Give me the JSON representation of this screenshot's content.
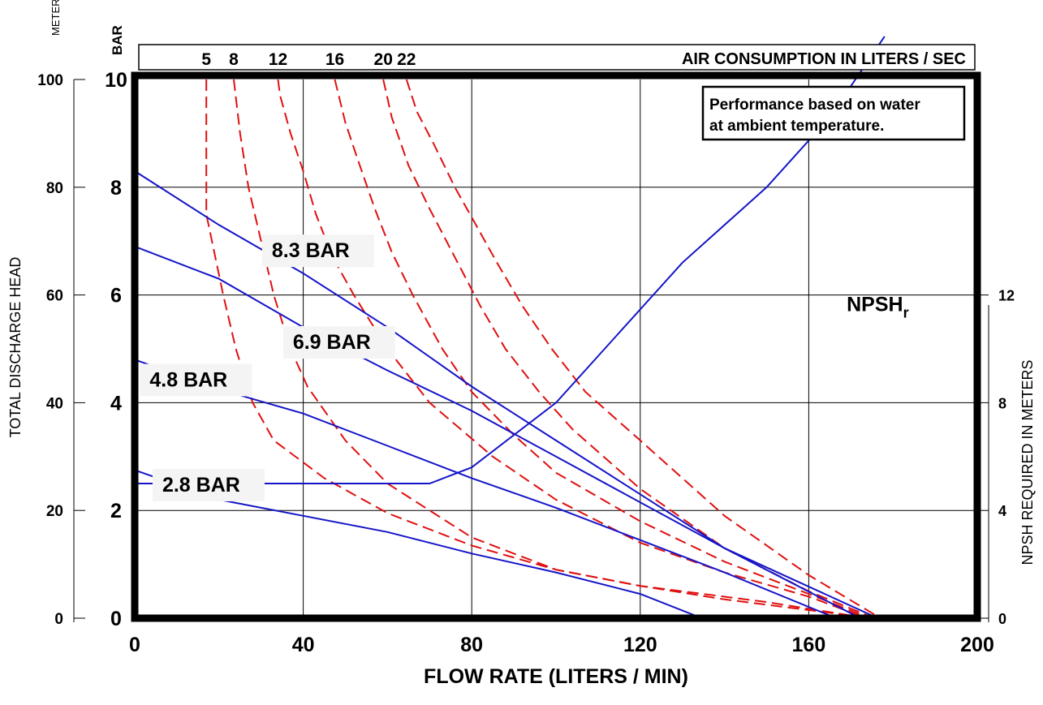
{
  "chart_data": {
    "type": "line",
    "title": "",
    "note": [
      "Performance based on water",
      "at ambient temperature."
    ],
    "xlabel": "FLOW RATE (LITERS / MIN)",
    "x_ticks": [
      "0",
      "40",
      "80",
      "120",
      "160",
      "200"
    ],
    "xlim": [
      0,
      200
    ],
    "y_left_meters": {
      "label": "TOTAL DISCHARGE HEAD",
      "unit": "METERS",
      "ticks": [
        "0",
        "20",
        "40",
        "60",
        "80",
        "100"
      ],
      "ylim": [
        0,
        100
      ]
    },
    "y_left_bar": {
      "unit": "BAR",
      "ticks": [
        "0",
        "2",
        "4",
        "6",
        "8",
        "10"
      ],
      "ylim": [
        0,
        10
      ]
    },
    "y_right": {
      "label": "NPSH REQUIRED IN METERS",
      "ticks": [
        "0",
        "4",
        "8",
        "12"
      ],
      "ylim": [
        0,
        20
      ]
    },
    "air_axis": {
      "label": "AIR CONSUMPTION IN LITERS / SEC",
      "values": [
        "5",
        "8",
        "12",
        "16",
        "20",
        "22"
      ]
    },
    "grid": true,
    "colors": {
      "pressure": "#1515c8",
      "air": "#e01010",
      "frame": "#000000"
    },
    "pressure_series": [
      {
        "name": "8.3 BAR",
        "label_at": [
          31,
          6.7
        ],
        "points": [
          [
            0,
            8.3
          ],
          [
            20,
            7.3
          ],
          [
            40,
            6.4
          ],
          [
            60,
            5.4
          ],
          [
            80,
            4.3
          ],
          [
            100,
            3.3
          ],
          [
            120,
            2.3
          ],
          [
            140,
            1.3
          ],
          [
            175,
            0.05
          ]
        ]
      },
      {
        "name": "6.9 BAR",
        "label_at": [
          36,
          5.0
        ],
        "points": [
          [
            0,
            6.9
          ],
          [
            20,
            6.3
          ],
          [
            40,
            5.4
          ],
          [
            60,
            4.6
          ],
          [
            80,
            3.85
          ],
          [
            100,
            3.0
          ],
          [
            120,
            2.15
          ],
          [
            140,
            1.3
          ],
          [
            171,
            0.05
          ]
        ]
      },
      {
        "name": "4.8 BAR",
        "label_at": [
          2,
          4.3
        ],
        "points": [
          [
            0,
            4.8
          ],
          [
            20,
            4.25
          ],
          [
            40,
            3.8
          ],
          [
            60,
            3.2
          ],
          [
            80,
            2.6
          ],
          [
            100,
            2.05
          ],
          [
            120,
            1.45
          ],
          [
            140,
            0.85
          ],
          [
            165,
            0.05
          ]
        ]
      },
      {
        "name": "2.8 BAR",
        "label_at": [
          5,
          2.35
        ],
        "points": [
          [
            0,
            2.75
          ],
          [
            20,
            2.2
          ],
          [
            40,
            1.9
          ],
          [
            60,
            1.6
          ],
          [
            80,
            1.2
          ],
          [
            100,
            0.85
          ],
          [
            120,
            0.45
          ],
          [
            133,
            0.05
          ]
        ]
      }
    ],
    "npsh_series": {
      "name": "NPSH",
      "name_sub": "r",
      "label_at": [
        169,
        5.7
      ],
      "points": [
        [
          0,
          2.5
        ],
        [
          70,
          2.5
        ],
        [
          80,
          2.8
        ],
        [
          100,
          4.0
        ],
        [
          130,
          6.6
        ],
        [
          150,
          8.0
        ],
        [
          165,
          9.3
        ],
        [
          178,
          10.8
        ]
      ]
    },
    "air_series": [
      {
        "name": "5",
        "points": [
          [
            17,
            10.0
          ],
          [
            17,
            8.0
          ],
          [
            17,
            7.5
          ],
          [
            21,
            6.0
          ],
          [
            24,
            5.0
          ],
          [
            28,
            4.0
          ],
          [
            33,
            3.3
          ],
          [
            45,
            2.6
          ],
          [
            60,
            1.95
          ],
          [
            80,
            1.35
          ],
          [
            100,
            0.9
          ],
          [
            120,
            0.6
          ],
          [
            140,
            0.35
          ],
          [
            160,
            0.15
          ],
          [
            170,
            0.05
          ]
        ]
      },
      {
        "name": "8",
        "points": [
          [
            23.5,
            10.0
          ],
          [
            25,
            9.0
          ],
          [
            27,
            8.0
          ],
          [
            30,
            7.0
          ],
          [
            33,
            6.0
          ],
          [
            37,
            5.0
          ],
          [
            41,
            4.3
          ],
          [
            50,
            3.3
          ],
          [
            60,
            2.5
          ],
          [
            80,
            1.5
          ],
          [
            100,
            0.9
          ],
          [
            120,
            0.6
          ],
          [
            150,
            0.3
          ],
          [
            170,
            0.05
          ]
        ]
      },
      {
        "name": "12",
        "points": [
          [
            34,
            10.0
          ],
          [
            34.5,
            9.7
          ],
          [
            37,
            9.0
          ],
          [
            40,
            8.3
          ],
          [
            43,
            7.5
          ],
          [
            47,
            6.7
          ],
          [
            52,
            6.0
          ],
          [
            60,
            5.0
          ],
          [
            70,
            4.0
          ],
          [
            85,
            3.0
          ],
          [
            100,
            2.2
          ],
          [
            120,
            1.4
          ],
          [
            140,
            0.85
          ],
          [
            160,
            0.4
          ],
          [
            172,
            0.05
          ]
        ]
      },
      {
        "name": "16",
        "points": [
          [
            47.5,
            10.0
          ],
          [
            50,
            9.2
          ],
          [
            53,
            8.5
          ],
          [
            57,
            7.6
          ],
          [
            61,
            6.8
          ],
          [
            66,
            6.0
          ],
          [
            73,
            5.0
          ],
          [
            80,
            4.2
          ],
          [
            90,
            3.4
          ],
          [
            100,
            2.7
          ],
          [
            120,
            1.8
          ],
          [
            140,
            1.05
          ],
          [
            160,
            0.45
          ],
          [
            173,
            0.05
          ]
        ]
      },
      {
        "name": "20",
        "points": [
          [
            59,
            10.0
          ],
          [
            61,
            9.3
          ],
          [
            65,
            8.4
          ],
          [
            70,
            7.6
          ],
          [
            76,
            6.7
          ],
          [
            82,
            5.8
          ],
          [
            88,
            5.0
          ],
          [
            96,
            4.2
          ],
          [
            104,
            3.5
          ],
          [
            120,
            2.4
          ],
          [
            140,
            1.3
          ],
          [
            160,
            0.5
          ],
          [
            174,
            0.05
          ]
        ]
      },
      {
        "name": "22",
        "points": [
          [
            64.5,
            10.0
          ],
          [
            67,
            9.4
          ],
          [
            71,
            8.8
          ],
          [
            76,
            8.0
          ],
          [
            81,
            7.3
          ],
          [
            86,
            6.6
          ],
          [
            92,
            5.8
          ],
          [
            99,
            5.0
          ],
          [
            107,
            4.2
          ],
          [
            120,
            3.3
          ],
          [
            140,
            1.9
          ],
          [
            160,
            0.8
          ],
          [
            176,
            0.05
          ]
        ]
      }
    ]
  }
}
